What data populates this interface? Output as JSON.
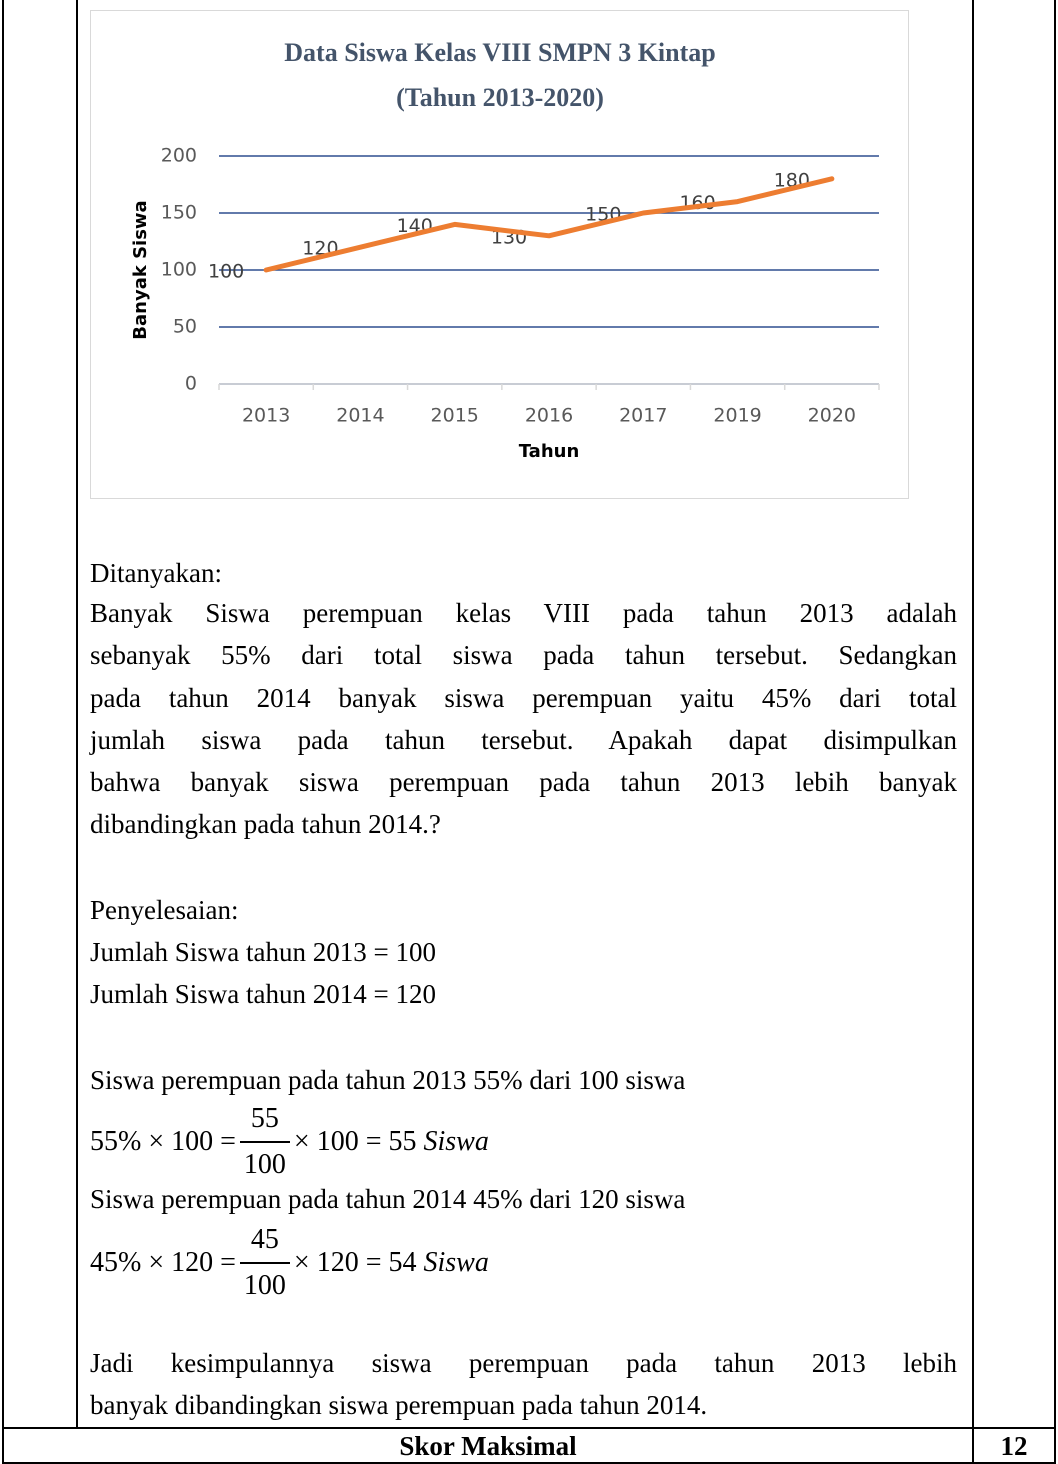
{
  "chart_data": {
    "type": "line",
    "title": "Data Siswa Kelas VIII SMPN 3 Kintap",
    "subtitle": "(Tahun 2013-2020)",
    "x_label": "Tahun",
    "y_label": "Banyak Siswa",
    "categories": [
      "2013",
      "2014",
      "2015",
      "2016",
      "2017",
      "2019",
      "2020"
    ],
    "values": [
      100,
      120,
      140,
      130,
      150,
      160,
      180
    ],
    "color": "#ed7d31",
    "grid": true,
    "grid_color": "#2f4f8f",
    "data_labels": true,
    "ylim": [
      0,
      200
    ],
    "yticks": [
      0,
      50,
      100,
      150,
      200
    ]
  },
  "document": {
    "question_heading": "Ditanyakan:",
    "question_lines": [
      "Banyak Siswa perempuan kelas VIII pada tahun 2013 adalah",
      "sebanyak 55% dari total siswa pada tahun tersebut. Sedangkan",
      "pada tahun 2014 banyak siswa perempuan yaitu 45%  dari total",
      "jumlah siswa pada tahun tersebut. Apakah dapat disimpulkan",
      "bahwa banyak siswa perempuan pada tahun 2013 lebih banyak",
      "dibandingkan pada tahun 2014.?"
    ],
    "solution_heading": "Penyelesaian:",
    "given": [
      "Jumlah Siswa tahun 2013 = 100",
      "Jumlah Siswa tahun 2014 = 120"
    ],
    "steps": [
      {
        "text": "Siswa perempuan pada tahun 2013 55% dari 100 siswa",
        "math": {
          "left": "55% × 100 =",
          "num": "55",
          "den": "100",
          "right": "× 100 = 55",
          "unit": "Siswa"
        }
      },
      {
        "text": "Siswa perempuan pada tahun 2014 45% dari 120 siswa",
        "math": {
          "left": "45% × 120 =",
          "num": "45",
          "den": "100",
          "right": "× 120 = 54",
          "unit": "Siswa"
        }
      }
    ],
    "conclusion_lines": [
      "Jadi kesimpulannya siswa perempuan pada tahun 2013 lebih",
      "banyak dibandingkan siswa perempuan pada tahun 2014."
    ],
    "footer": {
      "label": "Skor Maksimal",
      "score": "12"
    }
  }
}
